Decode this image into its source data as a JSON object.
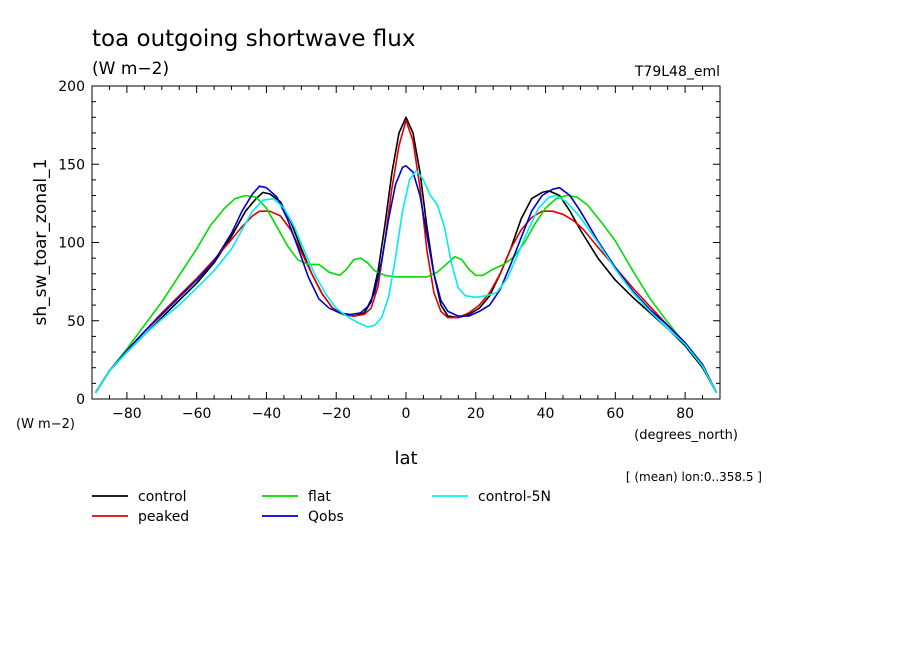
{
  "chart_data": {
    "type": "line",
    "title": "toa outgoing shortwave flux",
    "subtitle": "(W m−2)",
    "run_label": "T79L48_eml",
    "ylabel": "sh_sw_toar_zonal_1",
    "y_units": "(W m−2)",
    "xlabel": "lat",
    "x_units": "(degrees_north)",
    "averaging_note": "[ (mean) lon:0..358.5 ]",
    "xlim": [
      -90,
      90
    ],
    "ylim": [
      0,
      200
    ],
    "x_ticks": [
      -80,
      -60,
      -40,
      -20,
      0,
      20,
      40,
      60,
      80
    ],
    "y_ticks": [
      0,
      50,
      100,
      150,
      200
    ],
    "legend_position": "bottom",
    "series": [
      {
        "name": "control",
        "color": "#000000",
        "points": [
          [
            -89,
            4
          ],
          [
            -85,
            18
          ],
          [
            -80,
            30
          ],
          [
            -75,
            41
          ],
          [
            -70,
            52
          ],
          [
            -65,
            63
          ],
          [
            -60,
            74
          ],
          [
            -55,
            87
          ],
          [
            -50,
            104
          ],
          [
            -46,
            120
          ],
          [
            -43,
            128
          ],
          [
            -41,
            132
          ],
          [
            -39,
            131
          ],
          [
            -36,
            126
          ],
          [
            -33,
            113
          ],
          [
            -30,
            96
          ],
          [
            -27,
            80
          ],
          [
            -24,
            67
          ],
          [
            -21,
            58
          ],
          [
            -18,
            54
          ],
          [
            -15,
            53
          ],
          [
            -12,
            55
          ],
          [
            -10,
            62
          ],
          [
            -8,
            82
          ],
          [
            -6,
            112
          ],
          [
            -4,
            145
          ],
          [
            -2,
            170
          ],
          [
            0,
            180
          ],
          [
            2,
            170
          ],
          [
            4,
            145
          ],
          [
            6,
            110
          ],
          [
            8,
            80
          ],
          [
            10,
            60
          ],
          [
            12,
            53
          ],
          [
            15,
            52
          ],
          [
            18,
            54
          ],
          [
            21,
            58
          ],
          [
            24,
            66
          ],
          [
            27,
            80
          ],
          [
            30,
            96
          ],
          [
            33,
            115
          ],
          [
            36,
            128
          ],
          [
            39,
            132
          ],
          [
            41,
            133
          ],
          [
            44,
            130
          ],
          [
            47,
            120
          ],
          [
            50,
            108
          ],
          [
            55,
            90
          ],
          [
            60,
            76
          ],
          [
            65,
            65
          ],
          [
            70,
            55
          ],
          [
            75,
            45
          ],
          [
            80,
            34
          ],
          [
            85,
            20
          ],
          [
            89,
            4
          ]
        ]
      },
      {
        "name": "peaked",
        "color": "#e00000",
        "points": [
          [
            -89,
            4
          ],
          [
            -85,
            18
          ],
          [
            -80,
            31
          ],
          [
            -75,
            43
          ],
          [
            -70,
            55
          ],
          [
            -65,
            66
          ],
          [
            -60,
            77
          ],
          [
            -55,
            89
          ],
          [
            -50,
            102
          ],
          [
            -47,
            110
          ],
          [
            -44,
            117
          ],
          [
            -42,
            120
          ],
          [
            -39,
            120
          ],
          [
            -36,
            117
          ],
          [
            -33,
            108
          ],
          [
            -30,
            94
          ],
          [
            -27,
            80
          ],
          [
            -24,
            67
          ],
          [
            -21,
            58
          ],
          [
            -18,
            54
          ],
          [
            -15,
            53
          ],
          [
            -12,
            54
          ],
          [
            -10,
            58
          ],
          [
            -8,
            72
          ],
          [
            -6,
            102
          ],
          [
            -4,
            135
          ],
          [
            -2,
            162
          ],
          [
            0,
            178
          ],
          [
            2,
            165
          ],
          [
            4,
            135
          ],
          [
            6,
            95
          ],
          [
            8,
            68
          ],
          [
            10,
            56
          ],
          [
            12,
            52
          ],
          [
            15,
            52
          ],
          [
            18,
            55
          ],
          [
            21,
            60
          ],
          [
            24,
            68
          ],
          [
            27,
            80
          ],
          [
            30,
            96
          ],
          [
            33,
            108
          ],
          [
            36,
            116
          ],
          [
            39,
            120
          ],
          [
            42,
            120
          ],
          [
            45,
            118
          ],
          [
            48,
            114
          ],
          [
            51,
            108
          ],
          [
            55,
            97
          ],
          [
            60,
            84
          ],
          [
            65,
            71
          ],
          [
            70,
            59
          ],
          [
            75,
            47
          ],
          [
            80,
            36
          ],
          [
            85,
            22
          ],
          [
            89,
            4
          ]
        ]
      },
      {
        "name": "flat",
        "color": "#00dd00",
        "points": [
          [
            -89,
            4
          ],
          [
            -85,
            18
          ],
          [
            -80,
            32
          ],
          [
            -75,
            47
          ],
          [
            -70,
            62
          ],
          [
            -65,
            79
          ],
          [
            -60,
            96
          ],
          [
            -56,
            111
          ],
          [
            -52,
            122
          ],
          [
            -49,
            128
          ],
          [
            -46,
            130
          ],
          [
            -43,
            129
          ],
          [
            -40,
            122
          ],
          [
            -37,
            110
          ],
          [
            -34,
            98
          ],
          [
            -31,
            89
          ],
          [
            -28,
            86
          ],
          [
            -25,
            86
          ],
          [
            -22,
            81
          ],
          [
            -19,
            79
          ],
          [
            -17,
            83
          ],
          [
            -15,
            89
          ],
          [
            -13,
            90
          ],
          [
            -11,
            87
          ],
          [
            -9,
            82
          ],
          [
            -6,
            79
          ],
          [
            -3,
            78
          ],
          [
            0,
            78
          ],
          [
            3,
            78
          ],
          [
            6,
            78
          ],
          [
            9,
            81
          ],
          [
            12,
            87
          ],
          [
            14,
            91
          ],
          [
            16,
            89
          ],
          [
            18,
            83
          ],
          [
            20,
            79
          ],
          [
            22,
            79
          ],
          [
            25,
            83
          ],
          [
            28,
            86
          ],
          [
            31,
            91
          ],
          [
            34,
            100
          ],
          [
            37,
            112
          ],
          [
            40,
            122
          ],
          [
            43,
            128
          ],
          [
            46,
            130
          ],
          [
            49,
            129
          ],
          [
            52,
            124
          ],
          [
            56,
            113
          ],
          [
            60,
            101
          ],
          [
            65,
            82
          ],
          [
            70,
            64
          ],
          [
            75,
            49
          ],
          [
            80,
            35
          ],
          [
            85,
            21
          ],
          [
            89,
            4
          ]
        ]
      },
      {
        "name": "Qobs",
        "color": "#0000cc",
        "points": [
          [
            -89,
            4
          ],
          [
            -85,
            18
          ],
          [
            -80,
            31
          ],
          [
            -75,
            43
          ],
          [
            -70,
            54
          ],
          [
            -65,
            65
          ],
          [
            -60,
            76
          ],
          [
            -55,
            88
          ],
          [
            -50,
            106
          ],
          [
            -47,
            120
          ],
          [
            -44,
            131
          ],
          [
            -42,
            136
          ],
          [
            -40,
            135
          ],
          [
            -37,
            129
          ],
          [
            -34,
            115
          ],
          [
            -31,
            97
          ],
          [
            -28,
            78
          ],
          [
            -25,
            64
          ],
          [
            -22,
            58
          ],
          [
            -19,
            55
          ],
          [
            -16,
            54
          ],
          [
            -13,
            55
          ],
          [
            -11,
            59
          ],
          [
            -9,
            68
          ],
          [
            -7,
            88
          ],
          [
            -5,
            115
          ],
          [
            -3,
            137
          ],
          [
            -1,
            148
          ],
          [
            0,
            149
          ],
          [
            2,
            145
          ],
          [
            4,
            130
          ],
          [
            6,
            105
          ],
          [
            8,
            80
          ],
          [
            10,
            63
          ],
          [
            12,
            56
          ],
          [
            15,
            53
          ],
          [
            18,
            53
          ],
          [
            21,
            56
          ],
          [
            24,
            60
          ],
          [
            27,
            70
          ],
          [
            30,
            86
          ],
          [
            33,
            103
          ],
          [
            36,
            120
          ],
          [
            39,
            130
          ],
          [
            42,
            134
          ],
          [
            44,
            135
          ],
          [
            47,
            130
          ],
          [
            50,
            120
          ],
          [
            55,
            101
          ],
          [
            60,
            84
          ],
          [
            65,
            69
          ],
          [
            70,
            57
          ],
          [
            75,
            47
          ],
          [
            80,
            36
          ],
          [
            85,
            22
          ],
          [
            89,
            4
          ]
        ]
      },
      {
        "name": "control-5N",
        "color": "#00eeee",
        "points": [
          [
            -89,
            4
          ],
          [
            -85,
            18
          ],
          [
            -80,
            30
          ],
          [
            -75,
            41
          ],
          [
            -70,
            51
          ],
          [
            -65,
            60
          ],
          [
            -60,
            71
          ],
          [
            -55,
            82
          ],
          [
            -50,
            96
          ],
          [
            -47,
            108
          ],
          [
            -44,
            120
          ],
          [
            -41,
            127
          ],
          [
            -38,
            128
          ],
          [
            -35,
            122
          ],
          [
            -32,
            110
          ],
          [
            -29,
            94
          ],
          [
            -26,
            79
          ],
          [
            -23,
            67
          ],
          [
            -20,
            58
          ],
          [
            -17,
            53
          ],
          [
            -14,
            49
          ],
          [
            -11,
            46
          ],
          [
            -9,
            47
          ],
          [
            -7,
            52
          ],
          [
            -5,
            65
          ],
          [
            -3,
            90
          ],
          [
            -1,
            120
          ],
          [
            1,
            140
          ],
          [
            3,
            146
          ],
          [
            5,
            140
          ],
          [
            7,
            130
          ],
          [
            9,
            124
          ],
          [
            11,
            110
          ],
          [
            13,
            87
          ],
          [
            15,
            71
          ],
          [
            17,
            66
          ],
          [
            20,
            65
          ],
          [
            23,
            66
          ],
          [
            26,
            68
          ],
          [
            29,
            77
          ],
          [
            32,
            92
          ],
          [
            35,
            108
          ],
          [
            38,
            122
          ],
          [
            41,
            129
          ],
          [
            43,
            130
          ],
          [
            46,
            126
          ],
          [
            50,
            116
          ],
          [
            55,
            100
          ],
          [
            60,
            83
          ],
          [
            65,
            68
          ],
          [
            70,
            56
          ],
          [
            75,
            45
          ],
          [
            80,
            35
          ],
          [
            85,
            21
          ],
          [
            89,
            4
          ]
        ]
      }
    ]
  }
}
